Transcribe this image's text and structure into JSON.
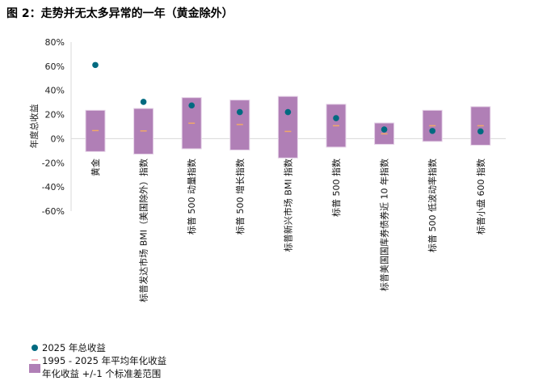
{
  "title": "图 2：走势并无太多异常的一年（黄金除外）",
  "chart_data": {
    "type": "bar",
    "title": "图 2：走势并无太多异常的一年（黄金除外）",
    "ylabel": "年度总收益",
    "ylim": [
      -60,
      80
    ],
    "yticks": [
      80,
      60,
      40,
      20,
      0,
      -20,
      -40,
      -60
    ],
    "ytick_labels": [
      "80%",
      "60%",
      "40%",
      "20%",
      "0%",
      "-20%",
      "-40%",
      "-60%"
    ],
    "grid": false,
    "legend_position": "bottom-left",
    "categories": [
      "黄金",
      "标普发达市场 BMI（美国除外）指数",
      "标普 500 动量指数",
      "标普 500 增长指数",
      "标普新兴市场 BMI 指数",
      "标普 500 指数",
      "标普美国国库券债券近 10 年指数",
      "标普 500 低波动率指数",
      "标普小盘 600 指数"
    ],
    "series": [
      {
        "name": "2025 年总收益",
        "type": "scatter",
        "color": "#006a80",
        "values": [
          61,
          30.5,
          27.5,
          22,
          22,
          17,
          7.6,
          6.4,
          6
        ]
      },
      {
        "name": "1995 - 2025 年平均年化收益",
        "type": "marker",
        "color": "#f0a868",
        "values": [
          6.7,
          6.4,
          12.8,
          11.7,
          6,
          10.7,
          4,
          10.7,
          10.7
        ]
      },
      {
        "name": "年化收益 +/-1 个标准差范围",
        "type": "range-bar",
        "color": "#b07fb6",
        "low": [
          -10.7,
          -12.8,
          -8.4,
          -9.4,
          -16,
          -7,
          -4.7,
          -2.3,
          -5.4
        ],
        "high": [
          23.5,
          25,
          34,
          32,
          35,
          28.5,
          13,
          23.5,
          26.5
        ]
      }
    ]
  }
}
